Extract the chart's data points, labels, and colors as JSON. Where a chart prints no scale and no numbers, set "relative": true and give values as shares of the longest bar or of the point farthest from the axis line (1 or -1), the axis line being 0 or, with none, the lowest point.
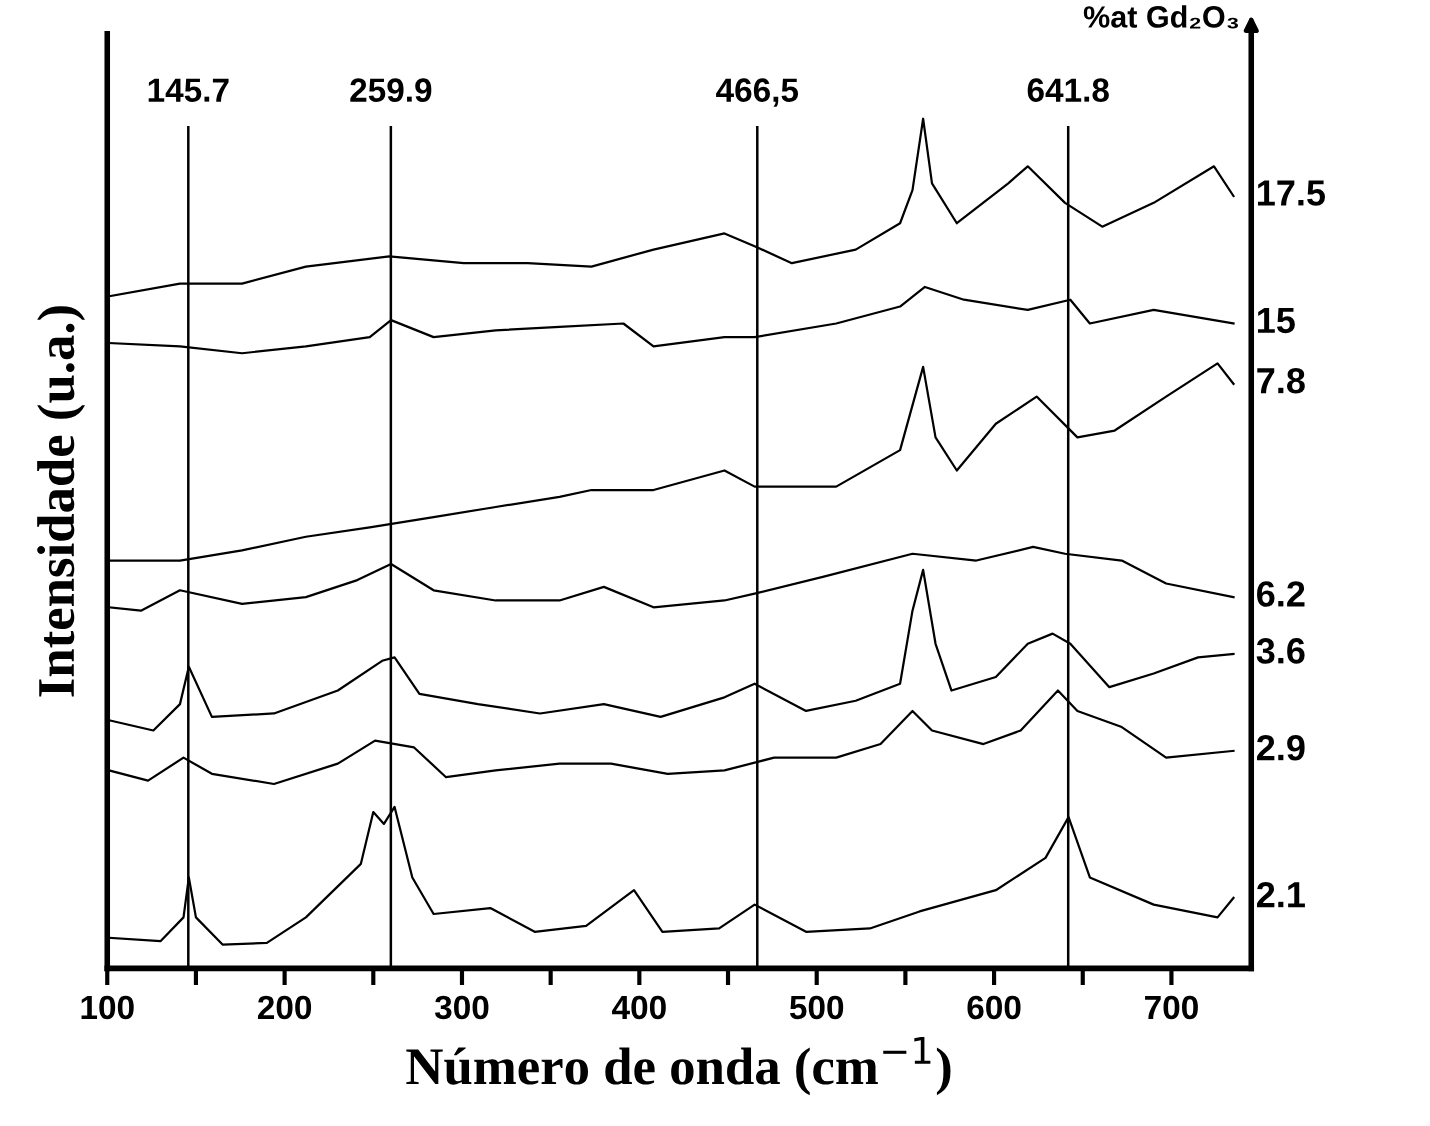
{
  "chart_data": {
    "type": "line",
    "relative": true,
    "xlabel": "Número de onda (cm$^{−1}$)",
    "ylabel": "Intensidade (u.a.)",
    "xlim": [
      100,
      745
    ],
    "xticks": [
      100,
      {
        "value": 150,
        "label": null
      },
      200,
      {
        "value": 250,
        "label": null
      },
      300,
      {
        "value": 350,
        "label": null
      },
      400,
      {
        "value": 450,
        "label": null
      },
      500,
      {
        "value": 550,
        "label": null
      },
      600,
      {
        "value": 650,
        "label": null
      },
      700
    ],
    "tick_labels": "x",
    "grid": false,
    "legend": false,
    "marker": "none",
    "line_style": "solid",
    "annotations": [
      "%at Gd₂O₃"
    ],
    "ref_lines": [
      {
        "axis": "x",
        "value": 145.7,
        "label": "145.7",
        "color": "#000000"
      },
      {
        "axis": "x",
        "value": 259.9,
        "label": "259.9",
        "color": "#000000"
      },
      {
        "axis": "x",
        "value": 466.5,
        "label": "466,5",
        "color": "#000000"
      },
      {
        "axis": "x",
        "value": 641.8,
        "label": "641.8",
        "color": "#000000"
      }
    ],
    "series": [
      {
        "name": "2.1",
        "color": "#000000",
        "x": [
          101,
          130,
          143,
          146,
          150,
          165,
          190,
          212,
          243,
          250,
          256,
          262,
          272,
          284,
          316,
          341,
          370,
          397,
          413,
          445,
          465,
          494,
          530,
          558,
          601,
          629,
          642,
          654,
          690,
          726,
          735
        ],
        "values": [
          0.036,
          0.032,
          0.06,
          0.107,
          0.06,
          0.028,
          0.03,
          0.06,
          0.123,
          0.184,
          0.17,
          0.19,
          0.107,
          0.064,
          0.071,
          0.043,
          0.05,
          0.092,
          0.043,
          0.047,
          0.075,
          0.043,
          0.047,
          0.067,
          0.092,
          0.13,
          0.178,
          0.107,
          0.075,
          0.06,
          0.083
        ]
      },
      {
        "name": "2.9",
        "color": "#000000",
        "x": [
          101,
          123,
          143,
          159,
          194,
          230,
          251,
          273,
          291,
          319,
          355,
          384,
          416,
          448,
          476,
          511,
          536,
          554,
          565,
          594,
          615,
          636,
          647,
          672,
          697,
          735
        ],
        "values": [
          0.233,
          0.221,
          0.248,
          0.229,
          0.217,
          0.241,
          0.268,
          0.26,
          0.225,
          0.233,
          0.241,
          0.241,
          0.229,
          0.233,
          0.248,
          0.248,
          0.264,
          0.303,
          0.28,
          0.264,
          0.28,
          0.327,
          0.303,
          0.284,
          0.248,
          0.256
        ]
      },
      {
        "name": "3.6",
        "color": "#000000",
        "x": [
          101,
          126,
          141,
          146,
          159,
          194,
          230,
          255,
          262,
          276,
          309,
          344,
          380,
          412,
          448,
          465,
          494,
          522,
          547,
          554,
          560,
          567,
          576,
          601,
          619,
          633,
          643,
          665,
          690,
          715,
          735
        ],
        "values": [
          0.292,
          0.28,
          0.311,
          0.355,
          0.296,
          0.3,
          0.327,
          0.362,
          0.366,
          0.323,
          0.311,
          0.3,
          0.311,
          0.296,
          0.319,
          0.335,
          0.303,
          0.315,
          0.335,
          0.421,
          0.469,
          0.382,
          0.327,
          0.343,
          0.382,
          0.394,
          0.382,
          0.331,
          0.347,
          0.366,
          0.37
        ]
      },
      {
        "name": "6.2",
        "color": "#000000",
        "x": [
          101,
          119,
          141,
          176,
          212,
          241,
          260,
          284,
          319,
          355,
          380,
          408,
          448,
          465,
          504,
          554,
          590,
          622,
          640,
          672,
          697,
          735
        ],
        "values": [
          0.425,
          0.421,
          0.445,
          0.429,
          0.437,
          0.457,
          0.476,
          0.445,
          0.433,
          0.433,
          0.449,
          0.425,
          0.433,
          0.441,
          0.461,
          0.488,
          0.48,
          0.496,
          0.488,
          0.48,
          0.453,
          0.437
        ]
      },
      {
        "name": "7.8",
        "color": "#000000",
        "x": [
          101,
          141,
          176,
          212,
          248,
          284,
          319,
          355,
          373,
          408,
          448,
          465,
          511,
          547,
          560,
          567,
          579,
          601,
          624,
          647,
          668,
          697,
          726,
          735
        ],
        "values": [
          0.48,
          0.48,
          0.492,
          0.508,
          0.519,
          0.531,
          0.543,
          0.555,
          0.563,
          0.563,
          0.586,
          0.567,
          0.567,
          0.61,
          0.708,
          0.625,
          0.586,
          0.641,
          0.673,
          0.625,
          0.633,
          0.673,
          0.712,
          0.688
        ]
      },
      {
        "name": "15",
        "color": "#000000",
        "x": [
          101,
          141,
          176,
          212,
          248,
          260,
          284,
          319,
          355,
          391,
          408,
          448,
          465,
          511,
          547,
          561,
          583,
          619,
          643,
          654,
          690,
          735
        ],
        "values": [
          0.736,
          0.732,
          0.724,
          0.732,
          0.743,
          0.763,
          0.743,
          0.751,
          0.755,
          0.759,
          0.732,
          0.743,
          0.743,
          0.759,
          0.779,
          0.802,
          0.787,
          0.775,
          0.787,
          0.759,
          0.775,
          0.759
        ]
      },
      {
        "name": "17.5",
        "color": "#000000",
        "x": [
          101,
          141,
          176,
          212,
          259,
          301,
          337,
          373,
          408,
          448,
          465,
          486,
          522,
          547,
          554,
          560,
          565,
          579,
          608,
          619,
          640,
          661,
          690,
          724,
          735
        ],
        "values": [
          0.791,
          0.806,
          0.806,
          0.826,
          0.838,
          0.83,
          0.83,
          0.826,
          0.846,
          0.865,
          0.85,
          0.83,
          0.846,
          0.877,
          0.916,
          1.0,
          0.924,
          0.877,
          0.924,
          0.944,
          0.901,
          0.873,
          0.901,
          0.944,
          0.909
        ]
      }
    ]
  }
}
